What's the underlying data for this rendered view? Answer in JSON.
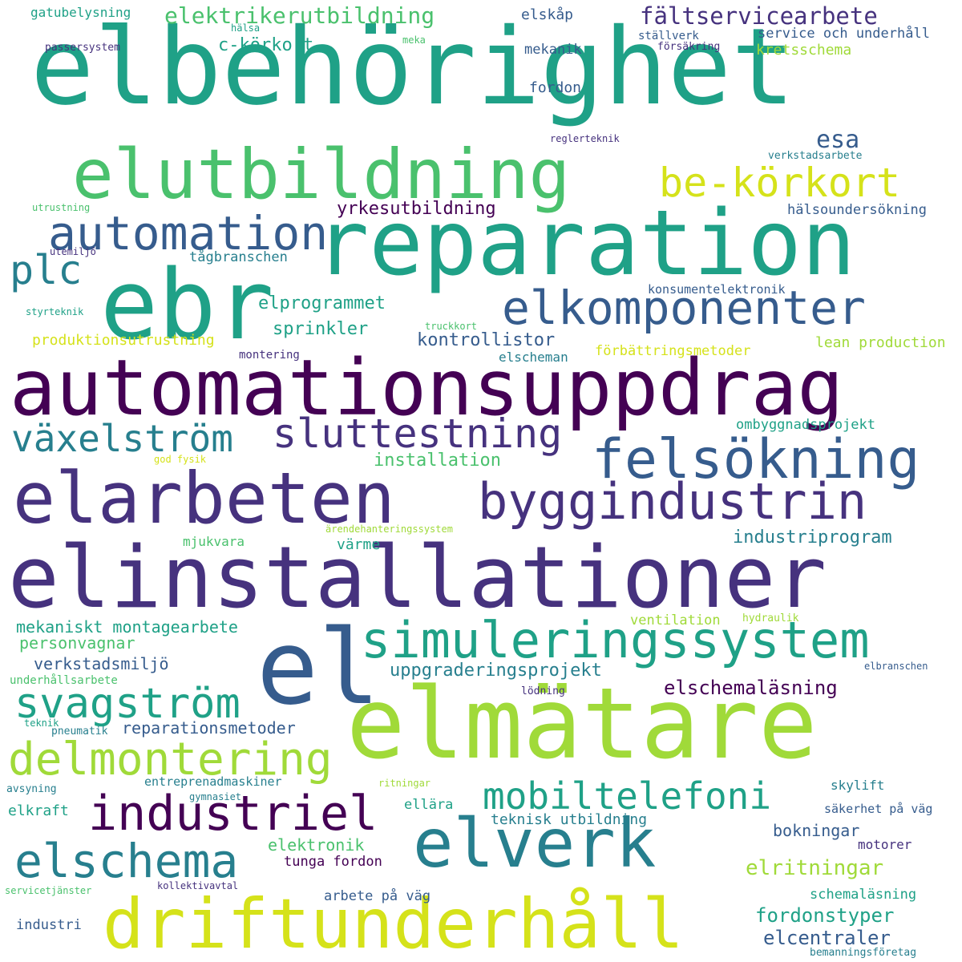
{
  "palette": {
    "background": "#ffffff",
    "d1": "#440154",
    "d2": "#46327e",
    "d3": "#365c8d",
    "d4": "#277f8e",
    "d5": "#1fa187",
    "d6": "#4ac16d",
    "d7": "#a0da39",
    "d8": "#d5e21a"
  },
  "words": [
    "elbehörighet",
    "elutbildning",
    "reparation",
    "ebr",
    "automation",
    "plc",
    "be-körkort",
    "elkomponenter",
    "automationsuppdrag",
    "växelström",
    "sluttestning",
    "felsökning",
    "elarbeten",
    "byggindustrin",
    "elinstallationer",
    "el",
    "simuleringssystem",
    "elmätare",
    "svagström",
    "delmontering",
    "industriel",
    "mobiltelefoni",
    "elverk",
    "elschema",
    "driftunderhåll",
    "elektrikerutbildning",
    "fältservicearbete",
    "gatubelysning",
    "c-körkort",
    "elskåp",
    "service och underhåll",
    "hälsa",
    "meka",
    "ställverk",
    "passersystem",
    "mekanik",
    "försäkring",
    "kretsschema",
    "fordon",
    "reglerteknik",
    "esa",
    "verkstadsarbete",
    "utrustning",
    "yrkesutbildning",
    "hälsoundersökning",
    "utemiljö",
    "tågbranschen",
    "konsumentelektronik",
    "styrteknik",
    "elprogrammet",
    "truckkort",
    "sprinkler",
    "produktionsutrustning",
    "kontrollistor",
    "lean production",
    "montering",
    "elscheman",
    "förbättringsmetoder",
    "ombyggnadsprojekt",
    "installation",
    "god fysik",
    "ärendehanteringssystem",
    "industriprogram",
    "mjukvara",
    "värme",
    "mekaniskt montagearbete",
    "ventilation",
    "hydraulik",
    "personvagnar",
    "verkstadsmiljö",
    "uppgraderingsprojekt",
    "elbranschen",
    "underhållsarbete",
    "lödning",
    "elschemaläsning",
    "teknik",
    "pneumatik",
    "reparationsmetoder",
    "entreprenadmaskiner",
    "ritningar",
    "skylift",
    "avsyning",
    "gymnasiet",
    "elkraft",
    "ellära",
    "säkerhet på väg",
    "teknisk utbildning",
    "bokningar",
    "elektronik",
    "motorer",
    "tunga fordon",
    "elritningar",
    "servicetjänster",
    "kollektivavtal",
    "arbete på väg",
    "schemaläsning",
    "fordonstyper",
    "industri",
    "elcentraler",
    "bemanningsföretag"
  ]
}
